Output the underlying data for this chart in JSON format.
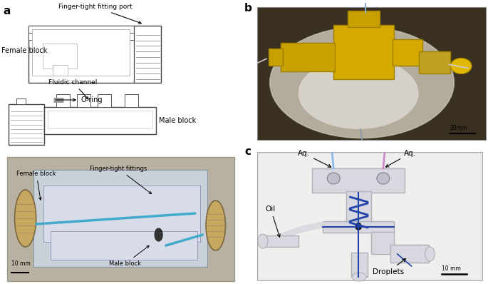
{
  "panel_a_label": "a",
  "panel_b_label": "b",
  "panel_c_label": "c",
  "bg_color": "#ffffff",
  "top_diagram": {
    "label_female": "Female block",
    "label_finger": "Finger-tight fitting port",
    "label_oring": "O-ring"
  },
  "bottom_diagram": {
    "label_fluidic": "Fluidic channel",
    "label_male": "Male block"
  },
  "photo_labels_a": {
    "female_block": "Female block",
    "finger_tight": "Finger-tight fittings",
    "male_block": "Male block",
    "scale": "10 mm"
  },
  "photo_labels_b": {
    "scale": "20mm"
  },
  "photo_labels_c": {
    "aq1": "Aq.",
    "aq2": "Aq.",
    "oil": "Oil",
    "droplets": "Droplets",
    "scale": "10 mm"
  }
}
